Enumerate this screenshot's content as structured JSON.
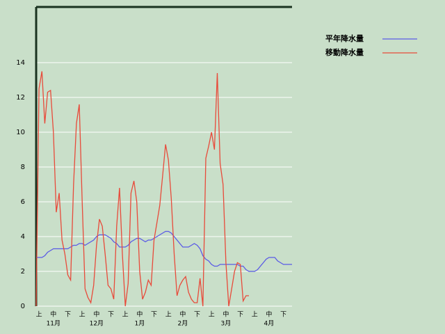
{
  "chart_data": {
    "type": "line",
    "categories": [
      null,
      "上",
      null,
      null,
      null,
      null,
      "中",
      null,
      null,
      null,
      null,
      "下",
      null,
      null,
      null,
      null,
      "上",
      null,
      null,
      null,
      null,
      "中",
      null,
      null,
      null,
      null,
      "下",
      null,
      null,
      null,
      null,
      "上",
      null,
      null,
      null,
      null,
      "中",
      null,
      null,
      null,
      null,
      "下",
      null,
      null,
      null,
      null,
      "上",
      null,
      null,
      null,
      null,
      "中",
      null,
      null,
      null,
      null,
      "下",
      null,
      null,
      null,
      null,
      "上",
      null,
      null,
      null,
      null,
      "中",
      null,
      null,
      null,
      null,
      "下",
      null,
      null,
      null,
      null,
      "上",
      null,
      null,
      null,
      null,
      "中",
      null,
      null,
      null,
      null,
      "下",
      null,
      null,
      null
    ],
    "month_labels": [
      "11月",
      "12月",
      "1月",
      "2月",
      "3月",
      "4月"
    ],
    "series": [
      {
        "name": "平年降水量",
        "color": "#5a5ae6",
        "values": [
          2.8,
          2.8,
          2.8,
          2.9,
          3.1,
          3.2,
          3.3,
          3.3,
          3.3,
          3.3,
          3.3,
          3.3,
          3.4,
          3.5,
          3.5,
          3.6,
          3.6,
          3.5,
          3.6,
          3.7,
          3.8,
          4.0,
          4.1,
          4.1,
          4.1,
          4.0,
          3.9,
          3.7,
          3.6,
          3.4,
          3.4,
          3.4,
          3.5,
          3.7,
          3.8,
          3.9,
          3.9,
          3.8,
          3.7,
          3.8,
          3.8,
          3.9,
          4.0,
          4.1,
          4.2,
          4.3,
          4.3,
          4.2,
          4.0,
          3.8,
          3.6,
          3.4,
          3.4,
          3.4,
          3.5,
          3.6,
          3.5,
          3.3,
          2.9,
          2.7,
          2.6,
          2.4,
          2.3,
          2.3,
          2.4,
          2.4,
          2.4,
          2.4,
          2.4,
          2.4,
          2.4,
          2.3,
          2.3,
          2.1,
          2.0,
          2.0,
          2.0,
          2.1,
          2.3,
          2.5,
          2.7,
          2.8,
          2.8,
          2.8,
          2.6,
          2.5,
          2.4,
          2.4,
          2.4,
          2.4
        ]
      },
      {
        "name": "移動降水量",
        "color": "#e84a3a",
        "values": [
          0,
          12.5,
          13.5,
          10.5,
          12.3,
          12.4,
          10.0,
          5.4,
          6.5,
          3.8,
          3.0,
          1.8,
          1.5,
          7.0,
          10.5,
          11.6,
          6.0,
          1.0,
          0.5,
          0.2,
          1.2,
          3.5,
          5.0,
          4.6,
          3.0,
          1.2,
          1.0,
          0.4,
          4.6,
          6.8,
          3.0,
          0.0,
          1.3,
          6.5,
          7.2,
          6.0,
          2.0,
          0.4,
          0.8,
          1.5,
          1.2,
          3.8,
          4.8,
          5.8,
          7.5,
          9.3,
          8.4,
          6.2,
          3.0,
          0.6,
          1.2,
          1.5,
          1.7,
          0.8,
          0.4,
          0.2,
          0.2,
          1.6,
          0.0,
          8.5,
          9.2,
          10.0,
          9.0,
          13.4,
          8.2,
          7.0,
          2.5,
          0.0,
          1.0,
          2.0,
          2.5,
          2.4,
          0.3,
          0.6,
          0.6,
          null,
          null,
          null,
          null,
          null,
          null,
          null,
          null,
          null,
          null,
          null,
          null,
          null,
          null,
          null
        ]
      }
    ],
    "ylim": [
      0,
      17.2
    ],
    "yticks": [
      0,
      2,
      4,
      6,
      8,
      10,
      12,
      14
    ],
    "grid": true
  }
}
